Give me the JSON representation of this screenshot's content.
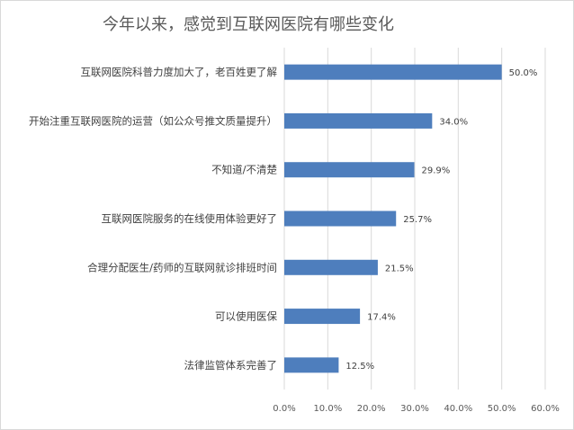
{
  "chart_data": {
    "type": "bar",
    "orientation": "horizontal",
    "title": "今年以来，感觉到互联网医院有哪些变化",
    "categories": [
      "互联网医院科普力度加大了，老百姓更了解",
      "开始注重互联网医院的运营（如公众号推文质量提升）",
      "不知道/不清楚",
      "互联网医院服务的在线使用体验更好了",
      "合理分配医生/药师的互联网就诊排班时间",
      "可以使用医保",
      "法律监管体系完善了"
    ],
    "values": [
      50.0,
      34.0,
      29.9,
      25.7,
      21.5,
      17.4,
      12.5
    ],
    "value_labels": [
      "50.0%",
      "34.0%",
      "29.9%",
      "25.7%",
      "21.5%",
      "17.4%",
      "12.5%"
    ],
    "xlim": [
      0,
      60
    ],
    "x_ticks": [
      "0.0%",
      "10.0%",
      "20.0%",
      "30.0%",
      "40.0%",
      "50.0%",
      "60.0%"
    ],
    "grid": true,
    "legend": "none",
    "bar_color": "#4e7ebd"
  }
}
